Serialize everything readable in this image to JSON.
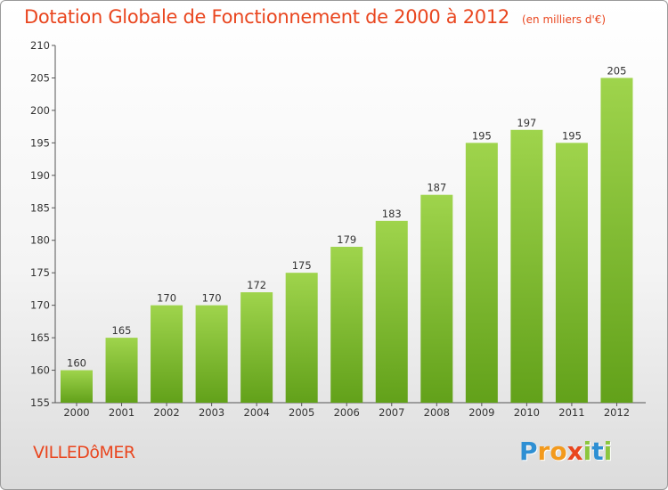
{
  "title": {
    "main": "Dotation Globale de Fonctionnement de 2000 à 2012",
    "unit": "(en milliers d'€)"
  },
  "commune": "VILLEDôMER",
  "logo": {
    "text": "Proxiti",
    "letters": [
      {
        "ch": "P",
        "color": "#2e8fd3"
      },
      {
        "ch": "r",
        "color": "#f39a1d"
      },
      {
        "ch": "o",
        "color": "#f39a1d"
      },
      {
        "ch": "x",
        "color": "#e9461f"
      },
      {
        "ch": "i",
        "color": "#8cc63e"
      },
      {
        "ch": "t",
        "color": "#2e8fd3"
      },
      {
        "ch": "i",
        "color": "#8cc63e"
      }
    ]
  },
  "colors": {
    "accent": "#e9461f",
    "bar_top": "#9fd44c",
    "bar_bottom": "#62a11a"
  },
  "chart_data": {
    "type": "bar",
    "categories": [
      "2000",
      "2001",
      "2002",
      "2003",
      "2004",
      "2005",
      "2006",
      "2007",
      "2008",
      "2009",
      "2010",
      "2011",
      "2012"
    ],
    "values": [
      160,
      165,
      170,
      170,
      172,
      175,
      179,
      183,
      187,
      195,
      197,
      195,
      205
    ],
    "ylim": [
      155,
      210
    ],
    "yticks": [
      155,
      160,
      165,
      170,
      175,
      180,
      185,
      190,
      195,
      200,
      205,
      210
    ],
    "grid": false,
    "legend": "none"
  }
}
